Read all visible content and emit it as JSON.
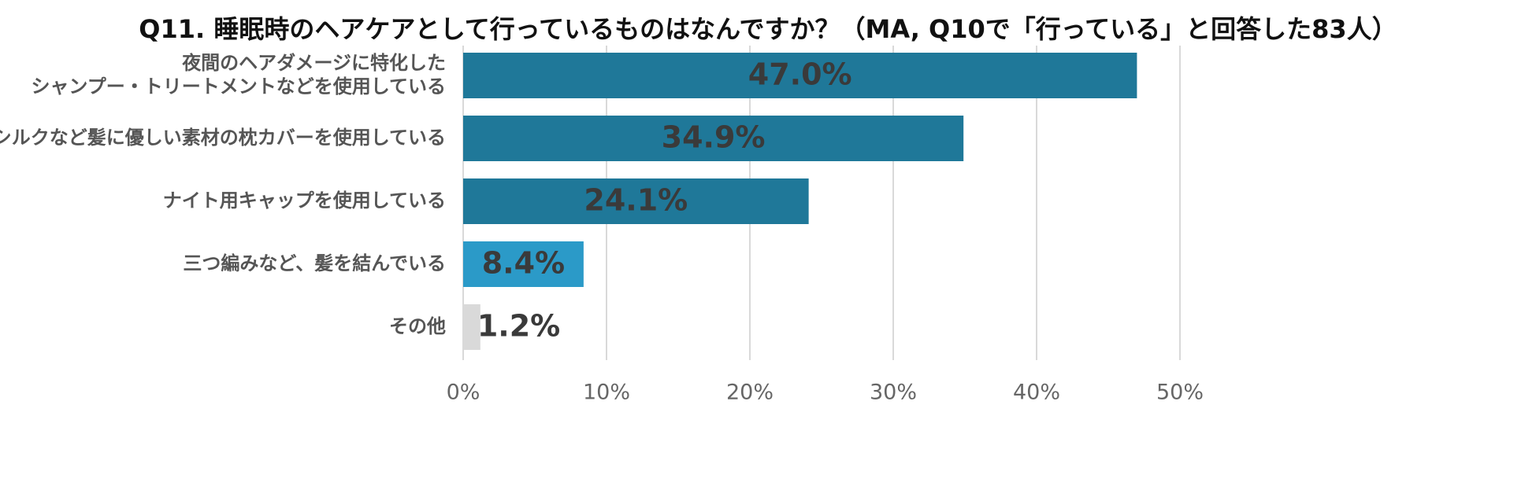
{
  "chart_data": {
    "type": "bar",
    "orientation": "horizontal",
    "title": "Q11. 睡眠時のヘアケアとして行っているものはなんですか？（MA, Q10で「行っている」と回答した83人）",
    "categories": [
      [
        "夜間のヘアダメージに特化した",
        "シャンプー・トリートメントなどを使用している"
      ],
      [
        "シルクなど髪に優しい素材の枕カバーを使用している"
      ],
      [
        "ナイト用キャップを使用している"
      ],
      [
        "三つ編みなど、髪を結んでいる"
      ],
      [
        "その他"
      ]
    ],
    "values": [
      47.0,
      34.9,
      24.1,
      8.4,
      1.2
    ],
    "value_labels": [
      "47.0%",
      "34.9%",
      "24.1%",
      "8.4%",
      "1.2%"
    ],
    "bar_colors": [
      "#1f7899",
      "#1f7899",
      "#1f7899",
      "#2b9ac8",
      "#d9d9d9"
    ],
    "xlim": [
      0,
      50
    ],
    "x_ticks": [
      0,
      10,
      20,
      30,
      40,
      50
    ],
    "x_tick_labels": [
      "0%",
      "10%",
      "20%",
      "30%",
      "40%",
      "50%"
    ],
    "grid": true,
    "grid_color": "#d9d9d9",
    "legend": "none"
  }
}
